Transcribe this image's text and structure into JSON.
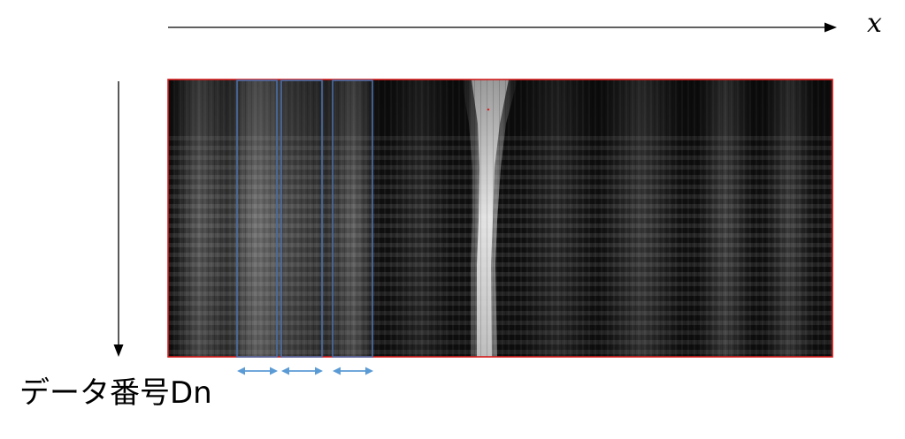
{
  "x_axis_label": "x",
  "y_axis_label": "データ番号Dn",
  "colors": {
    "image_border": "#d41a1a",
    "window_box": "#4a6ea8",
    "width_arrow": "#5b9bd5",
    "axis": "#000000"
  },
  "icons": {
    "x_axis_arrow": "arrow-right",
    "y_axis_arrow": "arrow-down",
    "window_width_arrow": "double-arrow-horizontal"
  },
  "window_box_count": 3
}
